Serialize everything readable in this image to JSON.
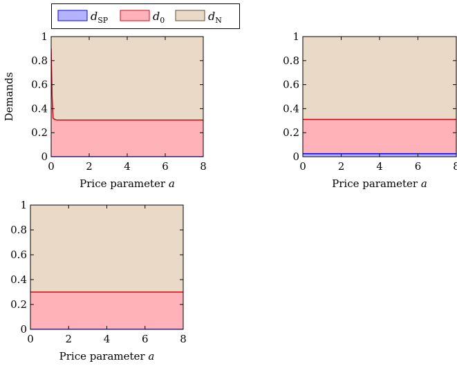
{
  "legend": {
    "entries": [
      {
        "symbol": "d",
        "sub": "SP",
        "series": "d_SP"
      },
      {
        "symbol": "d",
        "sub": "0",
        "series": "d_0"
      },
      {
        "symbol": "d",
        "sub": "N",
        "series": "d_N"
      }
    ]
  },
  "colors": {
    "d_SP": {
      "fill": "#b3b3ff",
      "line": "#0000ff"
    },
    "d_0": {
      "fill": "#ffb3b9",
      "line": "#e0000f"
    },
    "d_N": {
      "fill": "#ead9c6",
      "line": "#ead9c6"
    }
  },
  "chart_data": [
    {
      "type": "area",
      "stacked": true,
      "xlabel": "Price parameter a",
      "ylabel": "Demands",
      "xlim": [
        0,
        8
      ],
      "ylim": [
        0,
        1
      ],
      "xticks": [
        "0",
        "2",
        "4",
        "6",
        "8"
      ],
      "yticks": [
        "0",
        "0.2",
        "0.4",
        "0.6",
        "0.8",
        "1"
      ],
      "x": [
        0,
        0.05,
        0.1,
        0.2,
        0.3,
        8
      ],
      "series": [
        {
          "name": "d_SP",
          "values": [
            0,
            0,
            0,
            0,
            0,
            0
          ]
        },
        {
          "name": "d_0",
          "values": [
            0.9,
            0.5,
            0.32,
            0.31,
            0.305,
            0.305
          ]
        },
        {
          "name": "d_N",
          "values": [
            0.1,
            0.5,
            0.68,
            0.69,
            0.695,
            0.695
          ]
        }
      ]
    },
    {
      "type": "area",
      "stacked": true,
      "xlabel": "Price parameter a",
      "ylabel": "",
      "xlim": [
        0,
        8
      ],
      "ylim": [
        0,
        1
      ],
      "xticks": [
        "0",
        "2",
        "4",
        "6",
        "8"
      ],
      "yticks": [
        "0",
        "0.2",
        "0.4",
        "0.6",
        "0.8",
        "1"
      ],
      "x": [
        0,
        8
      ],
      "series": [
        {
          "name": "d_SP",
          "values": [
            0.025,
            0.025
          ]
        },
        {
          "name": "d_0",
          "values": [
            0.285,
            0.285
          ]
        },
        {
          "name": "d_N",
          "values": [
            0.69,
            0.69
          ]
        }
      ]
    },
    {
      "type": "area",
      "stacked": true,
      "xlabel": "Price parameter a",
      "ylabel": "",
      "xlim": [
        0,
        8
      ],
      "ylim": [
        0,
        1
      ],
      "xticks": [
        "0",
        "2",
        "4",
        "6",
        "8"
      ],
      "yticks": [
        "0",
        "0.2",
        "0.4",
        "0.6",
        "0.8",
        "1"
      ],
      "x": [
        0,
        8
      ],
      "series": [
        {
          "name": "d_SP",
          "values": [
            0,
            0
          ]
        },
        {
          "name": "d_0",
          "values": [
            0.3,
            0.3
          ]
        },
        {
          "name": "d_N",
          "values": [
            0.7,
            0.7
          ]
        }
      ]
    }
  ]
}
